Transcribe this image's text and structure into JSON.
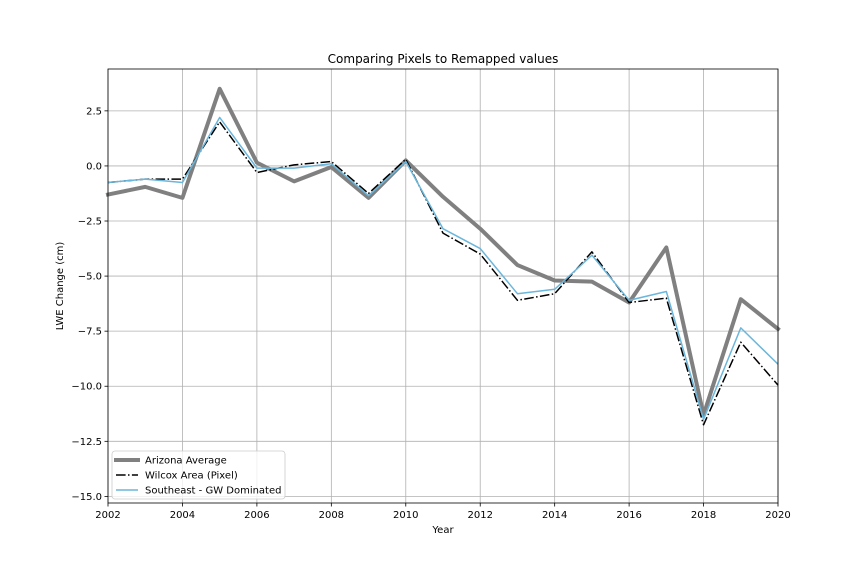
{
  "chart_data": {
    "type": "line",
    "title": "Comparing Pixels to Remapped values",
    "xlabel": "Year",
    "ylabel": "LWE Change (cm)",
    "xlim": [
      2002,
      2020
    ],
    "ylim": [
      -15.3,
      4.4
    ],
    "xticks": [
      2002,
      2004,
      2006,
      2008,
      2010,
      2012,
      2014,
      2016,
      2018,
      2020
    ],
    "xtick_labels": [
      "2002",
      "2004",
      "2006",
      "2008",
      "2010",
      "2012",
      "2014",
      "2016",
      "2018",
      "2020"
    ],
    "yticks": [
      2.5,
      0,
      -2.5,
      -5,
      -7.5,
      -10,
      -12.5,
      -15
    ],
    "ytick_labels": [
      "2.5",
      "0.0",
      "−2.5",
      "−5.0",
      "−7.5",
      "−10.0",
      "−12.5",
      "−15.0"
    ],
    "grid": true,
    "legend_position": "lower-left",
    "x": [
      2002,
      2003,
      2004,
      2005,
      2006,
      2007,
      2008,
      2009,
      2010,
      2011,
      2012,
      2013,
      2014,
      2015,
      2016,
      2017,
      2018,
      2019,
      2020
    ],
    "series": [
      {
        "name": "Arizona Average",
        "color": "#808080",
        "style": "solid-thick",
        "values": [
          -1.3,
          -0.95,
          -1.45,
          3.5,
          0.15,
          -0.7,
          -0.05,
          -1.45,
          0.25,
          -1.4,
          -2.85,
          -4.5,
          -5.2,
          -5.25,
          -6.2,
          -3.7,
          -11.3,
          -6.05,
          -7.4
        ]
      },
      {
        "name": "Wilcox Area (Pixel)",
        "color": "#000000",
        "style": "dashdot",
        "values": [
          -0.75,
          -0.6,
          -0.6,
          2.0,
          -0.3,
          0.05,
          0.2,
          -1.25,
          0.3,
          -3.05,
          -4.0,
          -6.1,
          -5.8,
          -3.9,
          -6.2,
          -6.0,
          -11.75,
          -8.0,
          -9.95
        ]
      },
      {
        "name": "Southeast - GW Dominated",
        "color": "#6bb6dc",
        "style": "solid",
        "values": [
          -0.75,
          -0.6,
          -0.75,
          2.2,
          -0.1,
          -0.1,
          0.1,
          -1.35,
          0.2,
          -2.85,
          -3.75,
          -5.8,
          -5.6,
          -4.05,
          -6.1,
          -5.7,
          -11.5,
          -7.35,
          -9.0
        ]
      }
    ]
  }
}
